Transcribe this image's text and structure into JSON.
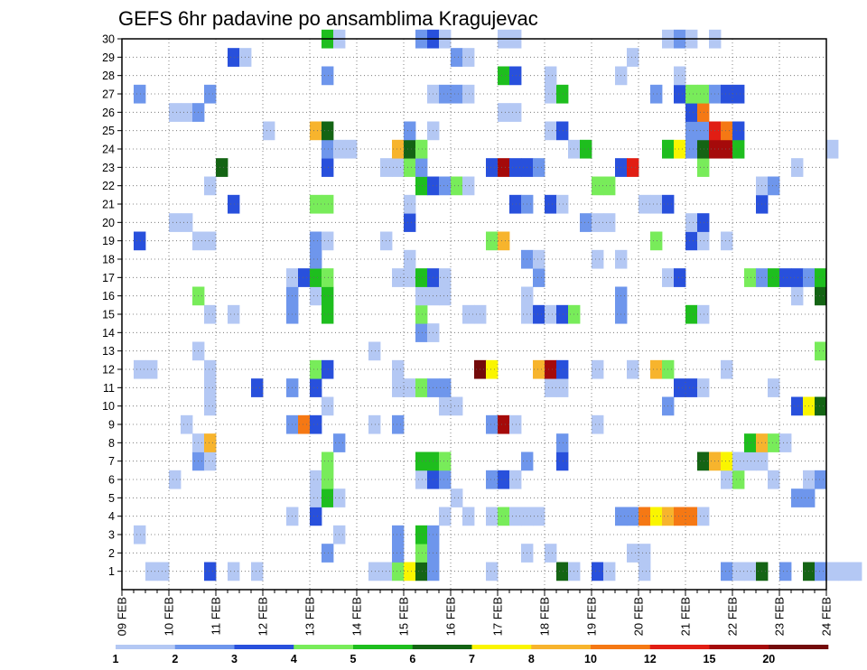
{
  "chart_data": {
    "type": "heatmap",
    "title": "GEFS 6hr padavine po ansamblima Kragujevac",
    "xlabel": "",
    "ylabel": "",
    "x_labels": [
      "09 FEB",
      "10 FEB",
      "11 FEB",
      "12 FEB",
      "13 FEB",
      "14 FEB",
      "15 FEB",
      "16 FEB",
      "17 FEB",
      "18 FEB",
      "19 FEB",
      "20 FEB",
      "21 FEB",
      "22 FEB",
      "23 FEB",
      "24 FEB"
    ],
    "x_range_days": [
      0,
      15
    ],
    "steps_per_day": 4,
    "members": 30,
    "y_ticks": [
      1,
      2,
      3,
      4,
      5,
      6,
      7,
      8,
      9,
      10,
      11,
      12,
      13,
      14,
      15,
      16,
      17,
      18,
      19,
      20,
      21,
      22,
      23,
      24,
      25,
      26,
      27,
      28,
      29,
      30
    ],
    "legend_thresholds": [
      "1",
      "2",
      "3",
      "4",
      "5",
      "6",
      "7",
      "8",
      "10",
      "12",
      "15",
      "20"
    ],
    "color_levels": [
      "#b4c8f4",
      "#6e96ec",
      "#2850dc",
      "#78ec5a",
      "#1ebe1e",
      "#146414",
      "#faf500",
      "#f7b42d",
      "#f57814",
      "#e11e14",
      "#a50a0a",
      "#730a0a"
    ],
    "cells": [
      [
        1,
        2,
        0
      ],
      [
        1,
        3,
        0
      ],
      [
        1,
        7,
        2
      ],
      [
        1,
        9,
        0
      ],
      [
        1,
        11,
        0
      ],
      [
        1,
        21,
        0
      ],
      [
        1,
        22,
        0
      ],
      [
        1,
        23,
        3
      ],
      [
        1,
        24,
        6
      ],
      [
        1,
        25,
        5
      ],
      [
        1,
        26,
        1
      ],
      [
        1,
        31,
        0
      ],
      [
        1,
        37,
        5
      ],
      [
        1,
        38,
        0
      ],
      [
        1,
        40,
        2
      ],
      [
        1,
        41,
        0
      ],
      [
        1,
        44,
        0
      ],
      [
        1,
        51,
        1
      ],
      [
        1,
        52,
        0
      ],
      [
        1,
        53,
        0
      ],
      [
        1,
        54,
        5
      ],
      [
        1,
        56,
        1
      ],
      [
        1,
        58,
        5
      ],
      [
        1,
        59,
        1
      ],
      [
        1,
        60,
        0
      ],
      [
        1,
        61,
        0
      ],
      [
        1,
        62,
        0
      ],
      [
        2,
        17,
        1
      ],
      [
        2,
        23,
        1
      ],
      [
        2,
        25,
        3
      ],
      [
        2,
        26,
        1
      ],
      [
        2,
        34,
        0
      ],
      [
        2,
        36,
        0
      ],
      [
        2,
        43,
        0
      ],
      [
        2,
        44,
        0
      ],
      [
        3,
        1,
        0
      ],
      [
        3,
        18,
        0
      ],
      [
        3,
        23,
        1
      ],
      [
        3,
        25,
        4
      ],
      [
        3,
        26,
        1
      ],
      [
        4,
        14,
        0
      ],
      [
        4,
        16,
        2
      ],
      [
        4,
        27,
        0
      ],
      [
        4,
        29,
        0
      ],
      [
        4,
        31,
        0
      ],
      [
        4,
        32,
        3
      ],
      [
        4,
        33,
        0
      ],
      [
        4,
        34,
        0
      ],
      [
        4,
        35,
        0
      ],
      [
        4,
        42,
        1
      ],
      [
        4,
        43,
        1
      ],
      [
        4,
        44,
        8
      ],
      [
        4,
        45,
        6
      ],
      [
        4,
        46,
        7
      ],
      [
        4,
        47,
        8
      ],
      [
        4,
        48,
        8
      ],
      [
        4,
        49,
        0
      ],
      [
        5,
        16,
        0
      ],
      [
        5,
        17,
        4
      ],
      [
        5,
        18,
        0
      ],
      [
        5,
        28,
        0
      ],
      [
        5,
        57,
        1
      ],
      [
        5,
        58,
        1
      ],
      [
        6,
        4,
        0
      ],
      [
        6,
        16,
        0
      ],
      [
        6,
        17,
        3
      ],
      [
        6,
        25,
        0
      ],
      [
        6,
        26,
        2
      ],
      [
        6,
        27,
        1
      ],
      [
        6,
        31,
        1
      ],
      [
        6,
        32,
        2
      ],
      [
        6,
        33,
        0
      ],
      [
        6,
        51,
        0
      ],
      [
        6,
        52,
        3
      ],
      [
        6,
        55,
        0
      ],
      [
        6,
        58,
        0
      ],
      [
        6,
        59,
        1
      ],
      [
        7,
        6,
        1
      ],
      [
        7,
        7,
        0
      ],
      [
        7,
        17,
        3
      ],
      [
        7,
        25,
        4
      ],
      [
        7,
        26,
        4
      ],
      [
        7,
        27,
        3
      ],
      [
        7,
        34,
        1
      ],
      [
        7,
        37,
        2
      ],
      [
        7,
        49,
        5
      ],
      [
        7,
        50,
        7
      ],
      [
        7,
        51,
        6
      ],
      [
        7,
        52,
        0
      ],
      [
        7,
        53,
        0
      ],
      [
        7,
        54,
        0
      ],
      [
        8,
        6,
        0
      ],
      [
        8,
        7,
        7
      ],
      [
        8,
        18,
        1
      ],
      [
        8,
        37,
        1
      ],
      [
        8,
        53,
        4
      ],
      [
        8,
        54,
        7
      ],
      [
        8,
        55,
        3
      ],
      [
        8,
        56,
        0
      ],
      [
        9,
        5,
        0
      ],
      [
        9,
        14,
        1
      ],
      [
        9,
        15,
        8
      ],
      [
        9,
        16,
        2
      ],
      [
        9,
        21,
        0
      ],
      [
        9,
        23,
        1
      ],
      [
        9,
        31,
        1
      ],
      [
        9,
        32,
        10
      ],
      [
        9,
        33,
        0
      ],
      [
        9,
        40,
        0
      ],
      [
        10,
        7,
        0
      ],
      [
        10,
        17,
        0
      ],
      [
        10,
        27,
        0
      ],
      [
        10,
        28,
        0
      ],
      [
        10,
        46,
        1
      ],
      [
        10,
        57,
        2
      ],
      [
        10,
        58,
        6
      ],
      [
        10,
        59,
        5
      ],
      [
        11,
        7,
        0
      ],
      [
        11,
        11,
        2
      ],
      [
        11,
        14,
        1
      ],
      [
        11,
        16,
        2
      ],
      [
        11,
        23,
        0
      ],
      [
        11,
        24,
        0
      ],
      [
        11,
        25,
        3
      ],
      [
        11,
        26,
        1
      ],
      [
        11,
        27,
        1
      ],
      [
        11,
        36,
        0
      ],
      [
        11,
        37,
        0
      ],
      [
        11,
        47,
        2
      ],
      [
        11,
        48,
        2
      ],
      [
        11,
        49,
        0
      ],
      [
        11,
        55,
        0
      ],
      [
        12,
        1,
        0
      ],
      [
        12,
        2,
        0
      ],
      [
        12,
        7,
        0
      ],
      [
        12,
        16,
        3
      ],
      [
        12,
        17,
        2
      ],
      [
        12,
        23,
        0
      ],
      [
        12,
        30,
        11
      ],
      [
        12,
        31,
        6
      ],
      [
        12,
        35,
        7
      ],
      [
        12,
        36,
        10
      ],
      [
        12,
        37,
        2
      ],
      [
        12,
        40,
        0
      ],
      [
        12,
        43,
        0
      ],
      [
        12,
        45,
        7
      ],
      [
        12,
        46,
        3
      ],
      [
        12,
        51,
        0
      ],
      [
        13,
        6,
        0
      ],
      [
        13,
        21,
        0
      ],
      [
        13,
        59,
        3
      ],
      [
        14,
        25,
        1
      ],
      [
        14,
        26,
        0
      ],
      [
        15,
        7,
        0
      ],
      [
        15,
        9,
        0
      ],
      [
        15,
        14,
        1
      ],
      [
        15,
        17,
        4
      ],
      [
        15,
        25,
        3
      ],
      [
        15,
        29,
        0
      ],
      [
        15,
        30,
        0
      ],
      [
        15,
        34,
        0
      ],
      [
        15,
        35,
        2
      ],
      [
        15,
        36,
        0
      ],
      [
        15,
        37,
        2
      ],
      [
        15,
        38,
        3
      ],
      [
        15,
        42,
        1
      ],
      [
        15,
        48,
        4
      ],
      [
        15,
        49,
        0
      ],
      [
        16,
        6,
        3
      ],
      [
        16,
        14,
        1
      ],
      [
        16,
        16,
        0
      ],
      [
        16,
        17,
        4
      ],
      [
        16,
        25,
        0
      ],
      [
        16,
        26,
        0
      ],
      [
        16,
        27,
        0
      ],
      [
        16,
        34,
        0
      ],
      [
        16,
        42,
        1
      ],
      [
        16,
        57,
        0
      ],
      [
        16,
        59,
        5
      ],
      [
        17,
        14,
        0
      ],
      [
        17,
        15,
        2
      ],
      [
        17,
        16,
        4
      ],
      [
        17,
        17,
        3
      ],
      [
        17,
        23,
        0
      ],
      [
        17,
        24,
        0
      ],
      [
        17,
        25,
        4
      ],
      [
        17,
        26,
        2
      ],
      [
        17,
        27,
        0
      ],
      [
        17,
        35,
        1
      ],
      [
        17,
        46,
        0
      ],
      [
        17,
        47,
        2
      ],
      [
        17,
        53,
        3
      ],
      [
        17,
        54,
        1
      ],
      [
        17,
        55,
        4
      ],
      [
        17,
        56,
        2
      ],
      [
        17,
        57,
        2
      ],
      [
        17,
        58,
        1
      ],
      [
        17,
        59,
        4
      ],
      [
        18,
        16,
        1
      ],
      [
        18,
        24,
        0
      ],
      [
        18,
        34,
        1
      ],
      [
        18,
        35,
        0
      ],
      [
        18,
        40,
        0
      ],
      [
        18,
        42,
        0
      ],
      [
        19,
        1,
        2
      ],
      [
        19,
        6,
        0
      ],
      [
        19,
        7,
        0
      ],
      [
        19,
        16,
        1
      ],
      [
        19,
        17,
        0
      ],
      [
        19,
        22,
        0
      ],
      [
        19,
        31,
        3
      ],
      [
        19,
        32,
        7
      ],
      [
        19,
        45,
        3
      ],
      [
        19,
        48,
        2
      ],
      [
        19,
        49,
        0
      ],
      [
        19,
        51,
        0
      ],
      [
        20,
        4,
        0
      ],
      [
        20,
        5,
        0
      ],
      [
        20,
        24,
        2
      ],
      [
        20,
        39,
        1
      ],
      [
        20,
        40,
        0
      ],
      [
        20,
        41,
        0
      ],
      [
        20,
        48,
        0
      ],
      [
        20,
        49,
        2
      ],
      [
        21,
        9,
        2
      ],
      [
        21,
        16,
        3
      ],
      [
        21,
        17,
        3
      ],
      [
        21,
        24,
        0
      ],
      [
        21,
        33,
        2
      ],
      [
        21,
        34,
        1
      ],
      [
        21,
        36,
        2
      ],
      [
        21,
        37,
        0
      ],
      [
        21,
        44,
        0
      ],
      [
        21,
        45,
        0
      ],
      [
        21,
        46,
        2
      ],
      [
        21,
        54,
        2
      ],
      [
        22,
        7,
        0
      ],
      [
        22,
        25,
        4
      ],
      [
        22,
        26,
        2
      ],
      [
        22,
        27,
        1
      ],
      [
        22,
        28,
        3
      ],
      [
        22,
        29,
        0
      ],
      [
        22,
        40,
        3
      ],
      [
        22,
        41,
        3
      ],
      [
        22,
        54,
        0
      ],
      [
        22,
        55,
        1
      ],
      [
        23,
        8,
        5
      ],
      [
        23,
        17,
        2
      ],
      [
        23,
        22,
        0
      ],
      [
        23,
        23,
        0
      ],
      [
        23,
        24,
        3
      ],
      [
        23,
        25,
        1
      ],
      [
        23,
        31,
        2
      ],
      [
        23,
        32,
        10
      ],
      [
        23,
        33,
        2
      ],
      [
        23,
        34,
        2
      ],
      [
        23,
        35,
        1
      ],
      [
        23,
        42,
        2
      ],
      [
        23,
        43,
        9
      ],
      [
        23,
        49,
        3
      ],
      [
        23,
        57,
        0
      ],
      [
        24,
        17,
        1
      ],
      [
        24,
        18,
        0
      ],
      [
        24,
        19,
        0
      ],
      [
        24,
        23,
        7
      ],
      [
        24,
        24,
        5
      ],
      [
        24,
        25,
        3
      ],
      [
        24,
        38,
        0
      ],
      [
        24,
        39,
        4
      ],
      [
        24,
        46,
        4
      ],
      [
        24,
        47,
        6
      ],
      [
        24,
        48,
        1
      ],
      [
        24,
        49,
        5
      ],
      [
        24,
        50,
        10
      ],
      [
        24,
        51,
        10
      ],
      [
        24,
        52,
        4
      ],
      [
        24,
        60,
        0
      ],
      [
        25,
        12,
        0
      ],
      [
        25,
        16,
        7
      ],
      [
        25,
        17,
        5
      ],
      [
        25,
        24,
        1
      ],
      [
        25,
        26,
        0
      ],
      [
        25,
        36,
        0
      ],
      [
        25,
        37,
        2
      ],
      [
        25,
        48,
        1
      ],
      [
        25,
        49,
        1
      ],
      [
        25,
        50,
        9
      ],
      [
        25,
        51,
        8
      ],
      [
        25,
        52,
        2
      ],
      [
        26,
        4,
        0
      ],
      [
        26,
        5,
        0
      ],
      [
        26,
        6,
        1
      ],
      [
        26,
        32,
        0
      ],
      [
        26,
        33,
        0
      ],
      [
        26,
        48,
        2
      ],
      [
        26,
        49,
        8
      ],
      [
        27,
        1,
        1
      ],
      [
        27,
        7,
        1
      ],
      [
        27,
        26,
        0
      ],
      [
        27,
        27,
        1
      ],
      [
        27,
        28,
        1
      ],
      [
        27,
        29,
        0
      ],
      [
        27,
        36,
        0
      ],
      [
        27,
        37,
        4
      ],
      [
        27,
        45,
        1
      ],
      [
        27,
        47,
        2
      ],
      [
        27,
        48,
        3
      ],
      [
        27,
        49,
        3
      ],
      [
        27,
        50,
        1
      ],
      [
        27,
        51,
        2
      ],
      [
        27,
        52,
        2
      ],
      [
        28,
        17,
        1
      ],
      [
        28,
        32,
        4
      ],
      [
        28,
        33,
        2
      ],
      [
        28,
        36,
        0
      ],
      [
        28,
        42,
        0
      ],
      [
        28,
        47,
        0
      ],
      [
        29,
        9,
        2
      ],
      [
        29,
        10,
        0
      ],
      [
        29,
        28,
        1
      ],
      [
        29,
        29,
        0
      ],
      [
        29,
        43,
        0
      ],
      [
        30,
        17,
        4
      ],
      [
        30,
        18,
        0
      ],
      [
        30,
        25,
        1
      ],
      [
        30,
        26,
        2
      ],
      [
        30,
        27,
        0
      ],
      [
        30,
        32,
        0
      ],
      [
        30,
        33,
        0
      ],
      [
        30,
        46,
        0
      ],
      [
        30,
        47,
        1
      ],
      [
        30,
        48,
        0
      ],
      [
        30,
        50,
        0
      ]
    ]
  }
}
